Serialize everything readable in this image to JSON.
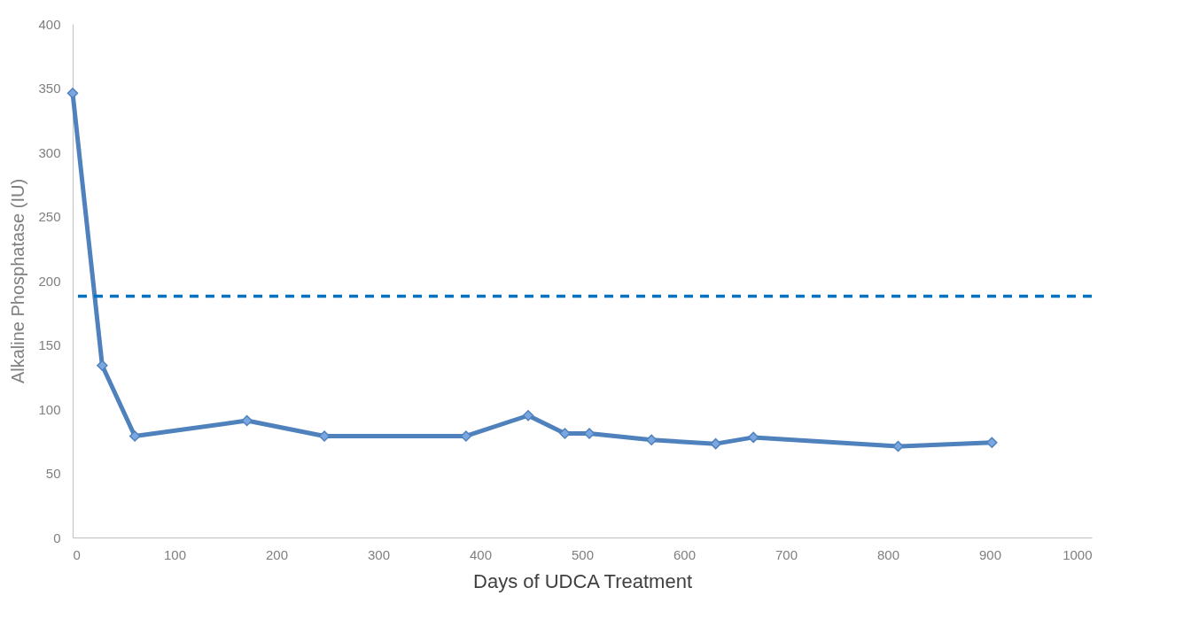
{
  "chart_data": {
    "type": "line",
    "xlabel": "Days of UDCA Treatment",
    "ylabel": "Alkaline Phosphatase (IU)",
    "x": [
      0,
      29,
      61,
      171,
      247,
      386,
      447,
      483,
      507,
      568,
      631,
      668,
      810,
      902
    ],
    "series": [
      {
        "color": "#4f81bd",
        "values": [
          346,
          134,
          79,
          91,
          79,
          79,
          95,
          81,
          81,
          76,
          73,
          78,
          71,
          74
        ]
      }
    ],
    "xlim": [
      0,
      1000
    ],
    "xticks": [
      0,
      100,
      200,
      300,
      400,
      500,
      600,
      700,
      800,
      900,
      1000
    ],
    "ylim": [
      0,
      400
    ],
    "yticks": [
      0,
      50,
      100,
      150,
      200,
      250,
      300,
      350,
      400
    ],
    "ref_lines": [
      {
        "axis": "y",
        "value": 188,
        "color": "#0070c0",
        "line_style": "dashed"
      }
    ],
    "marker": "diamond",
    "line_style": "solid",
    "grid": false
  }
}
